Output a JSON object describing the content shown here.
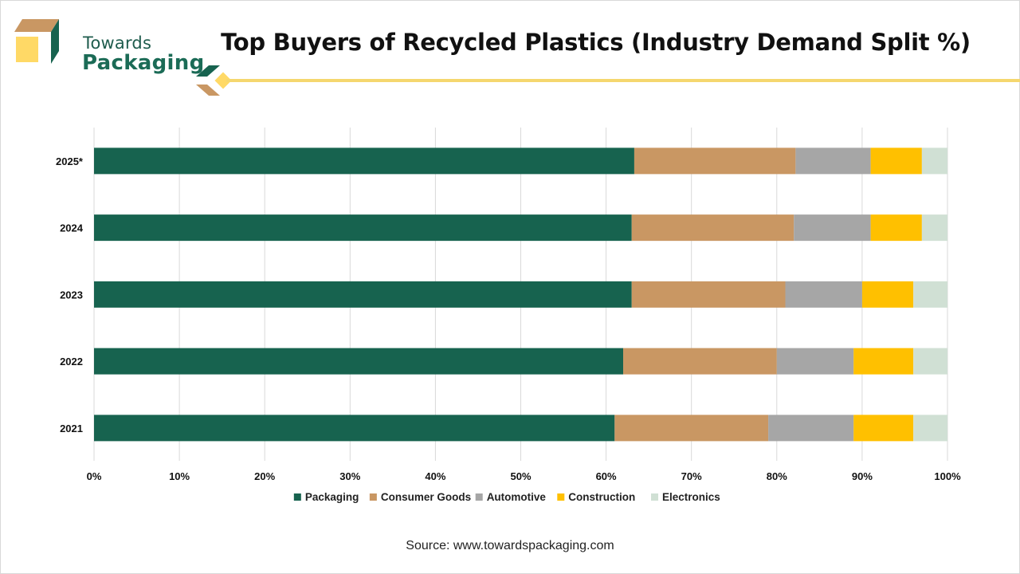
{
  "brand": {
    "line1": "Towards",
    "line2": "Packaging"
  },
  "colors": {
    "packaging": "#17634f",
    "consumer_goods": "#c99763",
    "automotive": "#a6a6a6",
    "construction": "#ffc000",
    "electronics": "#d0e0d4",
    "accent_line": "#f5d76e"
  },
  "source": "Source: www.towardspackaging.com",
  "chart_data": {
    "type": "bar",
    "orientation": "horizontal",
    "stacked": true,
    "title": "Top Buyers of Recycled Plastics (Industry Demand Split %)",
    "xlabel": "",
    "ylabel": "",
    "xlim": [
      0,
      100
    ],
    "x_ticks": [
      "0%",
      "10%",
      "20%",
      "30%",
      "40%",
      "50%",
      "60%",
      "70%",
      "80%",
      "90%",
      "100%"
    ],
    "grid": true,
    "legend_position": "bottom",
    "categories": [
      "2025*",
      "2024",
      "2023",
      "2022",
      "2021"
    ],
    "series": [
      {
        "name": "Packaging",
        "color": "#17634f",
        "values": [
          63.3,
          63,
          63,
          62,
          61
        ]
      },
      {
        "name": "Consumer Goods",
        "color": "#c99763",
        "values": [
          18.9,
          19,
          18,
          18,
          18
        ]
      },
      {
        "name": "Automotive",
        "color": "#a6a6a6",
        "values": [
          8.8,
          9,
          9,
          9,
          10
        ]
      },
      {
        "name": "Construction",
        "color": "#ffc000",
        "values": [
          6,
          6,
          6,
          7,
          7
        ]
      },
      {
        "name": "Electronics",
        "color": "#d0e0d4",
        "values": [
          3,
          3,
          4,
          4,
          4
        ]
      }
    ]
  }
}
